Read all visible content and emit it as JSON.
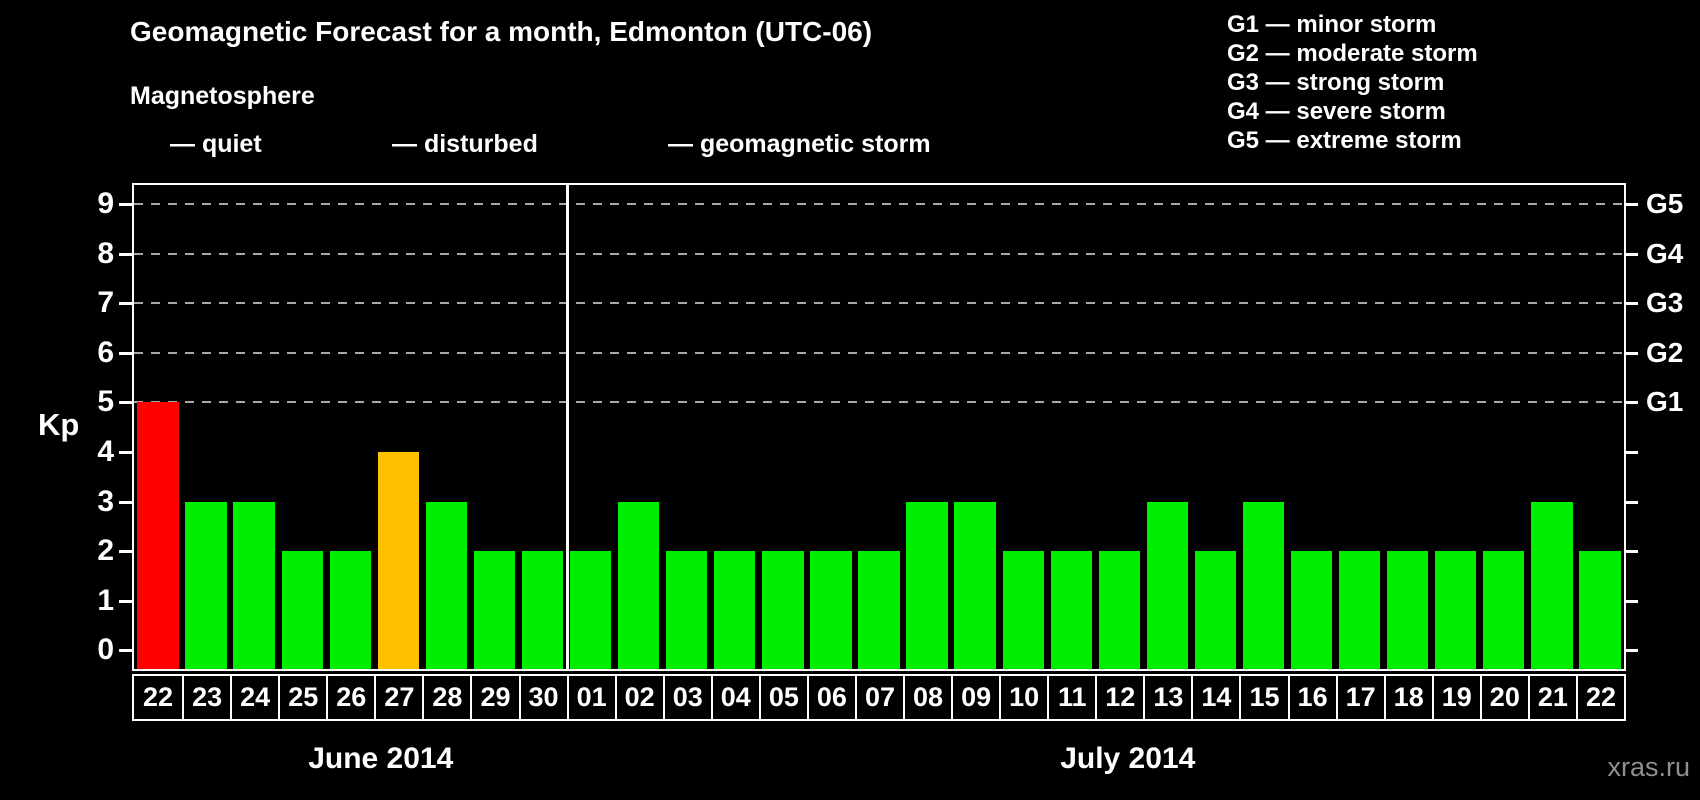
{
  "title": "Geomagnetic Forecast for a month, Edmonton (UTC-06)",
  "legend": {
    "heading": "Magnetosphere",
    "items": [
      {
        "key": "quiet",
        "label": "— quiet",
        "color": "#00ee00"
      },
      {
        "key": "disturbed",
        "label": "— disturbed",
        "color": "#ffc000"
      },
      {
        "key": "storm",
        "label": "— geomagnetic storm",
        "color": "#ff0000"
      }
    ]
  },
  "g_legend": {
    "lines": [
      "G1 — minor storm",
      "G2 — moderate storm",
      "G3 — strong storm",
      "G4 — severe storm",
      "G5 — extreme storm"
    ]
  },
  "watermark": "xras.ru",
  "chart_data": {
    "type": "bar",
    "title": "Geomagnetic Forecast for a month, Edmonton (UTC-06)",
    "ylabel": "Kp",
    "ylim": [
      0,
      9
    ],
    "y_ticks": [
      0,
      1,
      2,
      3,
      4,
      5,
      6,
      7,
      8,
      9
    ],
    "gridlines": "dashed horizontal at Kp 5-9",
    "grid_color": "#a8a8a8",
    "right_axis_labels": [
      {
        "label": "G1",
        "kp": 5
      },
      {
        "label": "G2",
        "kp": 6
      },
      {
        "label": "G3",
        "kp": 7
      },
      {
        "label": "G4",
        "kp": 8
      },
      {
        "label": "G5",
        "kp": 9
      }
    ],
    "colors": {
      "quiet": "#00ee00",
      "disturbed": "#ffc000",
      "storm": "#ff0000"
    },
    "months": [
      {
        "name": "June 2014",
        "days": [
          {
            "label": "22",
            "kp": 5,
            "condition": "storm"
          },
          {
            "label": "23",
            "kp": 3,
            "condition": "quiet"
          },
          {
            "label": "24",
            "kp": 3,
            "condition": "quiet"
          },
          {
            "label": "25",
            "kp": 2,
            "condition": "quiet"
          },
          {
            "label": "26",
            "kp": 2,
            "condition": "quiet"
          },
          {
            "label": "27",
            "kp": 4,
            "condition": "disturbed"
          },
          {
            "label": "28",
            "kp": 3,
            "condition": "quiet"
          },
          {
            "label": "29",
            "kp": 2,
            "condition": "quiet"
          },
          {
            "label": "30",
            "kp": 2,
            "condition": "quiet"
          }
        ]
      },
      {
        "name": "July 2014",
        "days": [
          {
            "label": "01",
            "kp": 2,
            "condition": "quiet"
          },
          {
            "label": "02",
            "kp": 3,
            "condition": "quiet"
          },
          {
            "label": "03",
            "kp": 2,
            "condition": "quiet"
          },
          {
            "label": "04",
            "kp": 2,
            "condition": "quiet"
          },
          {
            "label": "05",
            "kp": 2,
            "condition": "quiet"
          },
          {
            "label": "06",
            "kp": 2,
            "condition": "quiet"
          },
          {
            "label": "07",
            "kp": 2,
            "condition": "quiet"
          },
          {
            "label": "08",
            "kp": 3,
            "condition": "quiet"
          },
          {
            "label": "09",
            "kp": 3,
            "condition": "quiet"
          },
          {
            "label": "10",
            "kp": 2,
            "condition": "quiet"
          },
          {
            "label": "11",
            "kp": 2,
            "condition": "quiet"
          },
          {
            "label": "12",
            "kp": 2,
            "condition": "quiet"
          },
          {
            "label": "13",
            "kp": 3,
            "condition": "quiet"
          },
          {
            "label": "14",
            "kp": 2,
            "condition": "quiet"
          },
          {
            "label": "15",
            "kp": 3,
            "condition": "quiet"
          },
          {
            "label": "16",
            "kp": 2,
            "condition": "quiet"
          },
          {
            "label": "17",
            "kp": 2,
            "condition": "quiet"
          },
          {
            "label": "18",
            "kp": 2,
            "condition": "quiet"
          },
          {
            "label": "19",
            "kp": 2,
            "condition": "quiet"
          },
          {
            "label": "20",
            "kp": 2,
            "condition": "quiet"
          },
          {
            "label": "21",
            "kp": 3,
            "condition": "quiet"
          },
          {
            "label": "22",
            "kp": 2,
            "condition": "quiet"
          }
        ]
      }
    ]
  }
}
